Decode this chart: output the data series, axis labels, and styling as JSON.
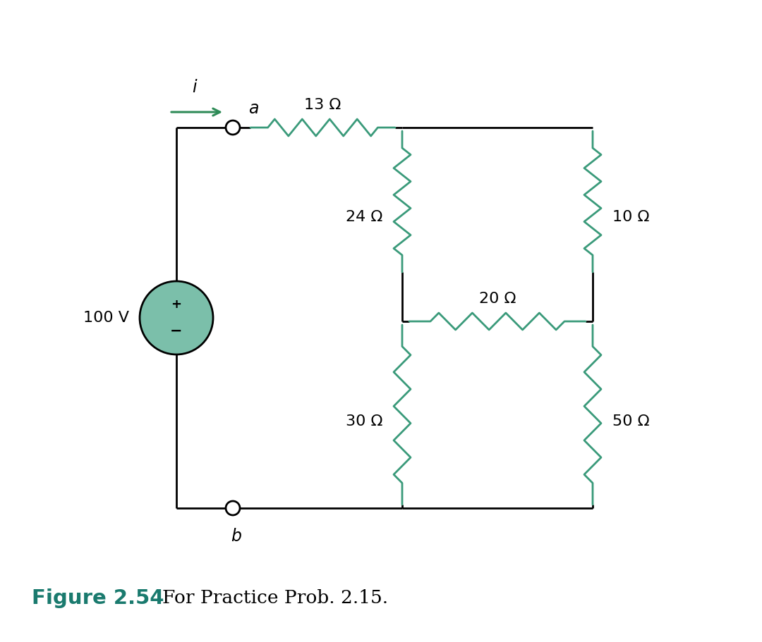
{
  "bg_color": "#ffffff",
  "line_color": "#000000",
  "resistor_color": "#3a9a7a",
  "arrow_color": "#2e8b57",
  "source_color": "#7bbfaa",
  "figure_label_color": "#1a7a6e",
  "figure_label": "Figure 2.54",
  "caption": "For Practice Prob. 2.15.",
  "R13": "13 Ω",
  "R24": "24 Ω",
  "R30": "30 Ω",
  "R10": "10 Ω",
  "R20": "20 Ω",
  "R50": "50 Ω",
  "source_label": "100 V",
  "node_a": "a",
  "node_b": "b",
  "current_label": "i",
  "line_width": 2.0,
  "res_color": "#3a9a7a"
}
